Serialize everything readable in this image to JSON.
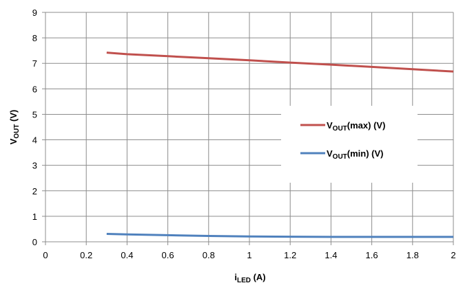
{
  "chart_data": {
    "type": "line",
    "xlabel": {
      "main": "i",
      "sub": "LED",
      "rest": " (A)"
    },
    "ylabel": {
      "main": "V",
      "sub": "OUT",
      "rest": " (V)"
    },
    "xlim": [
      0,
      2
    ],
    "ylim": [
      0,
      9
    ],
    "x_ticks": [
      "0",
      "0.2",
      "0.4",
      "0.6",
      "0.8",
      "1",
      "1.2",
      "1.4",
      "1.6",
      "1.8",
      "2"
    ],
    "y_ticks": [
      "0",
      "1",
      "2",
      "3",
      "4",
      "5",
      "6",
      "7",
      "8",
      "9"
    ],
    "grid": true,
    "legend_position": "right",
    "series": [
      {
        "name": "V_OUT(max) (V)",
        "legend": {
          "main": "V",
          "sub": "OUT",
          "rest": "(max) (V)"
        },
        "color": "#C0504D",
        "x": [
          0.3,
          0.4,
          0.6,
          0.8,
          1.0,
          1.2,
          1.4,
          1.6,
          1.8,
          2.0
        ],
        "y": [
          7.42,
          7.36,
          7.28,
          7.2,
          7.12,
          7.03,
          6.95,
          6.86,
          6.77,
          6.68
        ]
      },
      {
        "name": "V_OUT(min) (V)",
        "legend": {
          "main": "V",
          "sub": "OUT",
          "rest": "(min) (V)"
        },
        "color": "#4F81BD",
        "x": [
          0.3,
          0.4,
          0.6,
          0.8,
          1.0,
          1.2,
          1.4,
          1.6,
          1.8,
          2.0
        ],
        "y": [
          0.31,
          0.29,
          0.26,
          0.23,
          0.21,
          0.2,
          0.19,
          0.19,
          0.19,
          0.19
        ]
      }
    ]
  }
}
